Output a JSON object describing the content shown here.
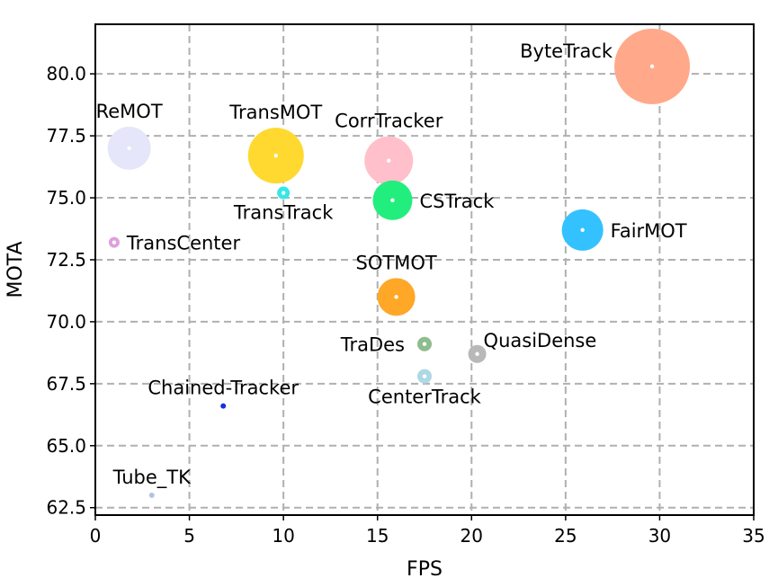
{
  "chart_data": {
    "type": "scatter",
    "title": "",
    "xlabel": "FPS",
    "ylabel": "MOTA",
    "xlim": [
      0,
      35
    ],
    "ylim": [
      62.2,
      82.0
    ],
    "grid": true,
    "xticks": [
      0,
      5,
      10,
      15,
      20,
      25,
      30,
      35
    ],
    "yticks": [
      62.5,
      65.0,
      67.5,
      70.0,
      72.5,
      75.0,
      77.5,
      80.0
    ],
    "xtick_labels": [
      "0",
      "5",
      "10",
      "15",
      "20",
      "25",
      "30",
      "35"
    ],
    "ytick_labels": [
      "62.5",
      "65.0",
      "67.5",
      "70.0",
      "72.5",
      "75.0",
      "77.5",
      "80.0"
    ],
    "points": [
      {
        "name": "ByteTrack",
        "x": 29.6,
        "y": 80.3,
        "size": 42,
        "color": "#ffa98a",
        "label_pos": "left-top"
      },
      {
        "name": "ReMOT",
        "x": 1.8,
        "y": 77.0,
        "size": 24,
        "color": "#e6e6fa",
        "label_pos": "top"
      },
      {
        "name": "TransMOT",
        "x": 9.6,
        "y": 76.7,
        "size": 31,
        "color": "#ffd92f",
        "label_pos": "top"
      },
      {
        "name": "CorrTracker",
        "x": 15.6,
        "y": 76.5,
        "size": 27,
        "color": "#ffc0cb",
        "label_pos": "top"
      },
      {
        "name": "TransTrack",
        "x": 10.0,
        "y": 75.2,
        "size": 7,
        "color": "#33e8e8",
        "label_pos": "bottom"
      },
      {
        "name": "CSTrack",
        "x": 15.8,
        "y": 74.9,
        "size": 22,
        "color": "#22ee7e",
        "label_pos": "right"
      },
      {
        "name": "FairMOT",
        "x": 25.9,
        "y": 73.7,
        "size": 23,
        "color": "#33c2ff",
        "label_pos": "right"
      },
      {
        "name": "TransCenter",
        "x": 1.0,
        "y": 73.2,
        "size": 6,
        "color": "#dda0dd",
        "label_pos": "right"
      },
      {
        "name": "SOTMOT",
        "x": 16.0,
        "y": 71.0,
        "size": 21,
        "color": "#ffa726",
        "label_pos": "top"
      },
      {
        "name": "TraDes",
        "x": 17.5,
        "y": 69.1,
        "size": 8,
        "color": "#8fbc8f",
        "label_pos": "left"
      },
      {
        "name": "QuasiDense",
        "x": 20.3,
        "y": 68.7,
        "size": 10,
        "color": "#b8b8b8",
        "label_pos": "right-top"
      },
      {
        "name": "CenterTrack",
        "x": 17.5,
        "y": 67.8,
        "size": 8,
        "color": "#add8e6",
        "label_pos": "bottom"
      },
      {
        "name": "Chained-Tracker",
        "x": 6.8,
        "y": 66.6,
        "size": 3,
        "color": "#1c2fe0",
        "label_pos": "top"
      },
      {
        "name": "Tube_TK",
        "x": 3.0,
        "y": 63.0,
        "size": 3,
        "color": "#b0c4de",
        "label_pos": "top"
      }
    ]
  }
}
